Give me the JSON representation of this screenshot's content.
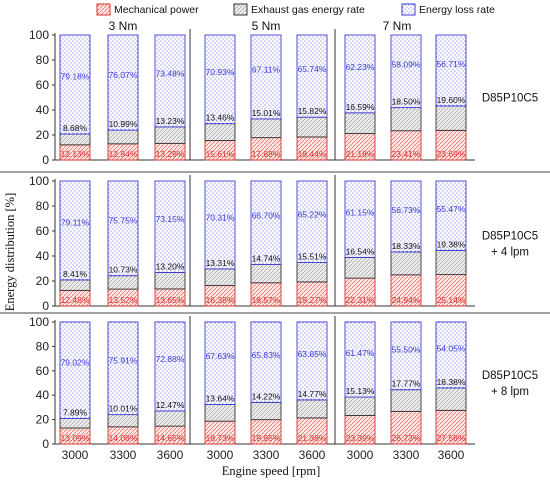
{
  "chart_data": {
    "type": "bar",
    "stacked": true,
    "title": "",
    "xlabel": "Engine speed [rpm]",
    "ylabel": "Energy distribution [%]",
    "ylim": [
      0,
      100
    ],
    "yticks": [
      "0",
      "20",
      "40",
      "60",
      "80",
      "100"
    ],
    "categories": [
      "3000",
      "3300",
      "3600",
      "3000",
      "3300",
      "3600",
      "3000",
      "3300",
      "3600"
    ],
    "torque_groups": [
      "3 Nm",
      "5 Nm",
      "7 Nm"
    ],
    "legend": {
      "position": "top",
      "entries": [
        "Mechanical power",
        "Exhaust gas energy rate",
        "Energy loss rate"
      ]
    },
    "colors": {
      "mechanical": "#d9322e",
      "exhaust": "#333333",
      "loss": "#3a3ad6"
    },
    "panels": [
      {
        "label_lines": [
          "D85P10C5"
        ],
        "mechanical": [
          12.13,
          12.94,
          13.29,
          15.61,
          17.88,
          18.44,
          21.18,
          23.41,
          23.69
        ],
        "exhaust": [
          8.68,
          10.99,
          13.23,
          13.46,
          15.01,
          15.82,
          16.59,
          18.5,
          19.6
        ],
        "loss": [
          79.18,
          76.07,
          73.48,
          70.93,
          67.11,
          65.74,
          62.23,
          58.09,
          56.71
        ],
        "mechanical_labels": [
          "12.13%",
          "12.94%",
          "13.29%",
          "15.61%",
          "17.88%",
          "18.44%",
          "21.18%",
          "23.41%",
          "23.69%"
        ],
        "exhaust_labels": [
          "8.68%",
          "10.99%",
          "13.23%",
          "13.46%",
          "15.01%",
          "15.82%",
          "16.59%",
          "18.50%",
          "19.60%"
        ],
        "loss_labels": [
          "79.18%",
          "76.07%",
          "73.48%",
          "70.93%",
          "67.11%",
          "65.74%",
          "62.23%",
          "58.09%",
          "56.71%"
        ]
      },
      {
        "label_lines": [
          "D85P10C5",
          "+ 4 lpm"
        ],
        "mechanical": [
          12.48,
          13.52,
          13.65,
          16.38,
          18.57,
          19.27,
          22.31,
          24.94,
          25.14
        ],
        "exhaust": [
          8.41,
          10.73,
          13.2,
          13.31,
          14.74,
          15.51,
          16.54,
          18.33,
          19.38
        ],
        "loss": [
          79.11,
          75.75,
          73.15,
          70.31,
          66.7,
          65.22,
          61.15,
          56.73,
          55.47
        ],
        "mechanical_labels": [
          "12.48%",
          "13.52%",
          "13.65%",
          "16.38%",
          "18.57%",
          "19.27%",
          "22.31%",
          "24.94%",
          "25.14%"
        ],
        "exhaust_labels": [
          "8.41%",
          "10.73%",
          "13.20%",
          "13.31%",
          "14.74%",
          "15.51%",
          "16.54%",
          "18.33%",
          "19.38%"
        ],
        "loss_labels": [
          "79.11%",
          "75.75%",
          "73.15%",
          "70.31%",
          "66.70%",
          "65.22%",
          "61.15%",
          "56.73%",
          "55.47%"
        ]
      },
      {
        "label_lines": [
          "D85P10C5",
          "+ 8 lpm"
        ],
        "mechanical": [
          13.09,
          14.08,
          14.65,
          18.73,
          19.95,
          21.38,
          23.39,
          26.73,
          27.58
        ],
        "exhaust": [
          7.89,
          10.01,
          12.47,
          13.64,
          14.22,
          14.77,
          15.13,
          17.77,
          18.38
        ],
        "loss": [
          79.02,
          75.91,
          72.88,
          67.63,
          65.83,
          63.85,
          61.47,
          55.5,
          54.05
        ],
        "mechanical_labels": [
          "13.09%",
          "14.08%",
          "14.65%",
          "18.73%",
          "19.95%",
          "21.38%",
          "23.39%",
          "26.73%",
          "27.58%"
        ],
        "exhaust_labels": [
          "7.89%",
          "10.01%",
          "12.47%",
          "13.64%",
          "14.22%",
          "14.77%",
          "15.13%",
          "17.77%",
          "18.38%"
        ],
        "loss_labels": [
          "79.02%",
          "75.91%",
          "72.88%",
          "67.63%",
          "65.83%",
          "63.85%",
          "61.47%",
          "55.50%",
          "54.05%"
        ]
      }
    ]
  }
}
